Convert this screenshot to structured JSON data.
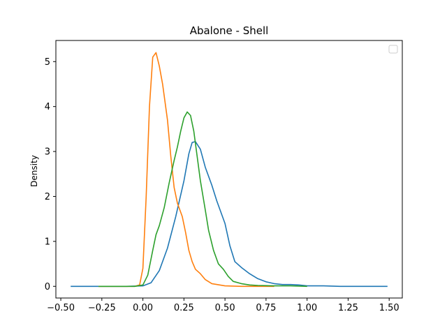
{
  "chart_data": {
    "type": "line",
    "title": "Abalone - Shell",
    "xlabel": "",
    "ylabel": "Density",
    "xlim": [
      -0.53,
      1.58
    ],
    "ylim": [
      -0.26,
      5.47
    ],
    "x_ticks": [
      -0.5,
      -0.25,
      0.0,
      0.25,
      0.5,
      0.75,
      1.0,
      1.25,
      1.5
    ],
    "x_tick_labels": [
      "−0.50",
      "−0.25",
      "0.00",
      "0.25",
      "0.50",
      "0.75",
      "1.00",
      "1.25",
      "1.50"
    ],
    "y_ticks": [
      0,
      1,
      2,
      3,
      4,
      5
    ],
    "y_tick_labels": [
      "0",
      "1",
      "2",
      "3",
      "4",
      "5"
    ],
    "grid": false,
    "legend": {
      "position": "top-right",
      "entries": []
    },
    "series": [
      {
        "color": "#1f77b4",
        "points": [
          [
            -0.44,
            0
          ],
          [
            -0.1,
            0
          ],
          [
            0.0,
            0.01
          ],
          [
            0.05,
            0.08
          ],
          [
            0.1,
            0.35
          ],
          [
            0.15,
            0.85
          ],
          [
            0.2,
            1.55
          ],
          [
            0.25,
            2.35
          ],
          [
            0.28,
            2.95
          ],
          [
            0.3,
            3.2
          ],
          [
            0.32,
            3.22
          ],
          [
            0.35,
            3.05
          ],
          [
            0.38,
            2.65
          ],
          [
            0.42,
            2.25
          ],
          [
            0.45,
            1.9
          ],
          [
            0.5,
            1.4
          ],
          [
            0.53,
            0.9
          ],
          [
            0.56,
            0.55
          ],
          [
            0.6,
            0.42
          ],
          [
            0.65,
            0.28
          ],
          [
            0.7,
            0.17
          ],
          [
            0.75,
            0.1
          ],
          [
            0.8,
            0.06
          ],
          [
            0.85,
            0.04
          ],
          [
            0.9,
            0.04
          ],
          [
            0.95,
            0.03
          ],
          [
            1.0,
            0.01
          ],
          [
            1.1,
            0.01
          ],
          [
            1.2,
            0
          ],
          [
            1.49,
            0
          ]
        ]
      },
      {
        "color": "#ff7f0e",
        "points": [
          [
            -0.27,
            0
          ],
          [
            -0.05,
            0
          ],
          [
            -0.02,
            0.03
          ],
          [
            0.0,
            0.4
          ],
          [
            0.02,
            2.0
          ],
          [
            0.04,
            4.0
          ],
          [
            0.06,
            5.1
          ],
          [
            0.08,
            5.2
          ],
          [
            0.1,
            4.9
          ],
          [
            0.12,
            4.5
          ],
          [
            0.15,
            3.7
          ],
          [
            0.17,
            2.9
          ],
          [
            0.19,
            2.2
          ],
          [
            0.21,
            1.85
          ],
          [
            0.24,
            1.55
          ],
          [
            0.26,
            1.2
          ],
          [
            0.28,
            0.8
          ],
          [
            0.3,
            0.55
          ],
          [
            0.32,
            0.38
          ],
          [
            0.35,
            0.28
          ],
          [
            0.38,
            0.15
          ],
          [
            0.42,
            0.06
          ],
          [
            0.5,
            0.01
          ],
          [
            0.6,
            0
          ],
          [
            0.8,
            0
          ]
        ]
      },
      {
        "color": "#2ca02c",
        "points": [
          [
            -0.27,
            0
          ],
          [
            -0.05,
            0
          ],
          [
            0.0,
            0.03
          ],
          [
            0.03,
            0.25
          ],
          [
            0.06,
            0.8
          ],
          [
            0.08,
            1.15
          ],
          [
            0.1,
            1.35
          ],
          [
            0.13,
            1.75
          ],
          [
            0.16,
            2.3
          ],
          [
            0.19,
            2.8
          ],
          [
            0.21,
            3.1
          ],
          [
            0.23,
            3.45
          ],
          [
            0.25,
            3.75
          ],
          [
            0.27,
            3.88
          ],
          [
            0.29,
            3.8
          ],
          [
            0.31,
            3.45
          ],
          [
            0.33,
            2.9
          ],
          [
            0.35,
            2.35
          ],
          [
            0.38,
            1.7
          ],
          [
            0.4,
            1.25
          ],
          [
            0.43,
            0.8
          ],
          [
            0.46,
            0.5
          ],
          [
            0.49,
            0.38
          ],
          [
            0.52,
            0.22
          ],
          [
            0.55,
            0.11
          ],
          [
            0.6,
            0.06
          ],
          [
            0.65,
            0.03
          ],
          [
            0.7,
            0.02
          ],
          [
            0.8,
            0.01
          ],
          [
            0.9,
            0.01
          ],
          [
            1.0,
            0
          ]
        ]
      }
    ]
  }
}
